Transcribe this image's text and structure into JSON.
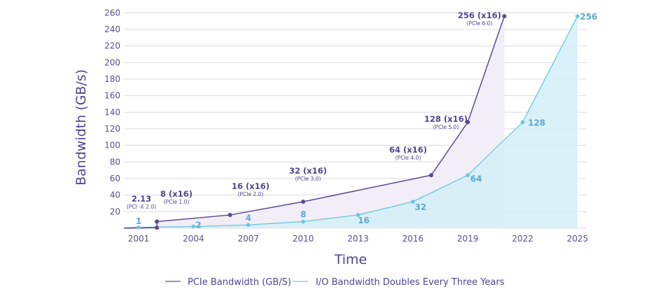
{
  "chart_data": {
    "type": "area",
    "title": "",
    "xlabel": "Time",
    "ylabel": "Bandwidth (GB/s)",
    "xlim": [
      2000.2,
      2025
    ],
    "ylim": [
      0,
      260
    ],
    "grid": true,
    "x_ticks": [
      2001,
      2004,
      2007,
      2010,
      2013,
      2016,
      2019,
      2022,
      2025
    ],
    "y_ticks": [
      20,
      40,
      60,
      80,
      100,
      120,
      140,
      160,
      180,
      200,
      220,
      240,
      260
    ],
    "legend_position": "bottom",
    "series": [
      {
        "name": "PCIe Bandwidth (GB/S)",
        "color": "#5c4a94",
        "fill": "#f1eef7",
        "points": [
          {
            "x": 2000.2,
            "y": 0
          },
          {
            "x": 2002,
            "y": 0.6
          },
          {
            "x": 2002,
            "y": 8,
            "label": "8 (x16)",
            "sublabel": "(PCIe 1.0)"
          },
          {
            "x": 2006,
            "y": 16,
            "label": "16 (x16)",
            "sublabel": "(PCIe 2.0)"
          },
          {
            "x": 2010,
            "y": 32,
            "label": "32 (x16)",
            "sublabel": "(PCIe 3.0)"
          },
          {
            "x": 2017,
            "y": 64,
            "label": "64 (x16)",
            "sublabel": "(PCIe 4.0)"
          },
          {
            "x": 2019,
            "y": 128,
            "label": "128 (x16)",
            "sublabel": "(PCIe 5.0)"
          },
          {
            "x": 2021,
            "y": 256,
            "label": "256 (x16)",
            "sublabel": "(PCIe 6.0)"
          }
        ],
        "extra_annotation": {
          "x": 2001,
          "y": 2.13,
          "label": "2.13",
          "sublabel": "(PCI -X 2.0)"
        }
      },
      {
        "name": "I/O Bandwidth Doubles Every Three Years",
        "color": "#6cc4df",
        "fill": "#d5eef8",
        "points": [
          {
            "x": 2001,
            "y": 1,
            "label": "1"
          },
          {
            "x": 2004,
            "y": 2,
            "label": "2"
          },
          {
            "x": 2007,
            "y": 4,
            "label": "4"
          },
          {
            "x": 2010,
            "y": 8,
            "label": "8"
          },
          {
            "x": 2013,
            "y": 16,
            "label": "16"
          },
          {
            "x": 2016,
            "y": 32,
            "label": "32"
          },
          {
            "x": 2019,
            "y": 64,
            "label": "64"
          },
          {
            "x": 2022,
            "y": 128,
            "label": "128"
          },
          {
            "x": 2025,
            "y": 256,
            "label": "256"
          }
        ]
      }
    ]
  }
}
